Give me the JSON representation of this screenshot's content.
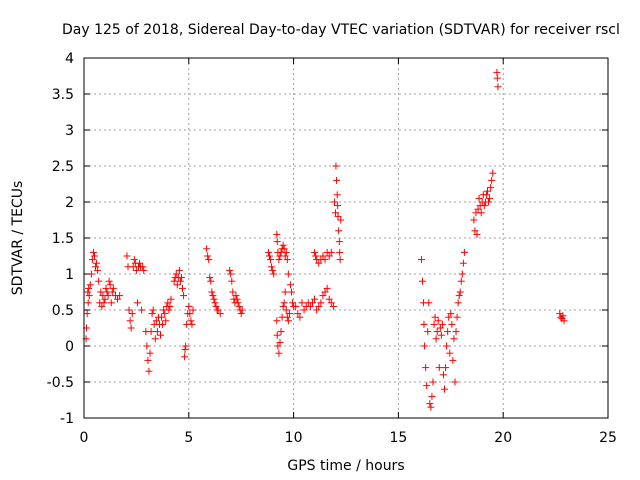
{
  "chart_data": {
    "type": "scatter",
    "title": "Day 125 of 2018, Sidereal Day-to-day VTEC variation (SDTVAR) for receiver rscl",
    "xlabel": "GPS time / hours",
    "ylabel": "SDTVAR / TECUs",
    "xlim": [
      0,
      25
    ],
    "ylim": [
      -1,
      4
    ],
    "xticks": [
      0,
      5,
      10,
      15,
      20,
      25
    ],
    "yticks": [
      -1,
      -0.5,
      0,
      0.5,
      1,
      1.5,
      2,
      2.5,
      3,
      3.5,
      4
    ],
    "grid": true,
    "marker": "+",
    "color": "#ff0000",
    "series": [
      {
        "name": "SDTVAR",
        "points": [
          [
            0.1,
            0.1
          ],
          [
            0.12,
            0.25
          ],
          [
            0.15,
            0.45
          ],
          [
            0.18,
            0.75
          ],
          [
            0.2,
            0.6
          ],
          [
            0.22,
            0.8
          ],
          [
            0.25,
            0.7
          ],
          [
            0.3,
            0.85
          ],
          [
            0.35,
            1.0
          ],
          [
            0.4,
            1.2
          ],
          [
            0.45,
            1.3
          ],
          [
            0.5,
            1.25
          ],
          [
            0.55,
            1.1
          ],
          [
            0.6,
            1.15
          ],
          [
            0.65,
            1.05
          ],
          [
            0.7,
            0.9
          ],
          [
            0.75,
            0.6
          ],
          [
            0.8,
            0.75
          ],
          [
            0.85,
            0.55
          ],
          [
            0.9,
            0.7
          ],
          [
            0.95,
            0.6
          ],
          [
            1.0,
            0.65
          ],
          [
            1.05,
            0.8
          ],
          [
            1.1,
            0.75
          ],
          [
            1.15,
            0.7
          ],
          [
            1.2,
            0.9
          ],
          [
            1.25,
            0.85
          ],
          [
            1.3,
            0.6
          ],
          [
            1.35,
            0.75
          ],
          [
            1.4,
            0.8
          ],
          [
            1.5,
            0.7
          ],
          [
            1.6,
            0.65
          ],
          [
            1.7,
            0.7
          ],
          [
            2.05,
            1.25
          ],
          [
            2.1,
            1.1
          ],
          [
            2.15,
            0.5
          ],
          [
            2.2,
            0.35
          ],
          [
            2.25,
            0.25
          ],
          [
            2.3,
            0.45
          ],
          [
            2.35,
            1.1
          ],
          [
            2.4,
            1.2
          ],
          [
            2.45,
            1.15
          ],
          [
            2.5,
            1.05
          ],
          [
            2.55,
            0.6
          ],
          [
            2.6,
            1.1
          ],
          [
            2.65,
            1.15
          ],
          [
            2.7,
            1.1
          ],
          [
            2.75,
            0.5
          ],
          [
            2.8,
            1.1
          ],
          [
            2.85,
            1.05
          ],
          [
            2.95,
            0.2
          ],
          [
            3.0,
            0.0
          ],
          [
            3.05,
            -0.2
          ],
          [
            3.1,
            -0.35
          ],
          [
            3.15,
            -0.1
          ],
          [
            3.2,
            0.2
          ],
          [
            3.25,
            0.45
          ],
          [
            3.3,
            0.5
          ],
          [
            3.35,
            0.3
          ],
          [
            3.4,
            0.1
          ],
          [
            3.45,
            0.35
          ],
          [
            3.5,
            0.2
          ],
          [
            3.55,
            0.4
          ],
          [
            3.6,
            0.3
          ],
          [
            3.65,
            0.15
          ],
          [
            3.7,
            0.4
          ],
          [
            3.75,
            0.3
          ],
          [
            3.8,
            0.5
          ],
          [
            3.85,
            0.45
          ],
          [
            3.9,
            0.35
          ],
          [
            3.95,
            0.55
          ],
          [
            4.0,
            0.6
          ],
          [
            4.05,
            0.5
          ],
          [
            4.1,
            0.55
          ],
          [
            4.15,
            0.65
          ],
          [
            4.3,
            0.9
          ],
          [
            4.35,
            0.95
          ],
          [
            4.4,
            1.0
          ],
          [
            4.45,
            0.85
          ],
          [
            4.5,
            0.95
          ],
          [
            4.55,
            1.05
          ],
          [
            4.6,
            0.9
          ],
          [
            4.65,
            0.95
          ],
          [
            4.7,
            0.8
          ],
          [
            4.75,
            0.7
          ],
          [
            4.8,
            -0.15
          ],
          [
            4.82,
            -0.05
          ],
          [
            4.85,
            0.0
          ],
          [
            4.9,
            0.3
          ],
          [
            4.95,
            0.45
          ],
          [
            5.0,
            0.55
          ],
          [
            5.05,
            0.45
          ],
          [
            5.1,
            0.35
          ],
          [
            5.15,
            0.3
          ],
          [
            5.2,
            0.5
          ],
          [
            5.85,
            1.35
          ],
          [
            5.9,
            1.25
          ],
          [
            5.95,
            1.2
          ],
          [
            6.0,
            0.95
          ],
          [
            6.05,
            0.9
          ],
          [
            6.1,
            0.75
          ],
          [
            6.15,
            0.7
          ],
          [
            6.2,
            0.65
          ],
          [
            6.25,
            0.6
          ],
          [
            6.3,
            0.55
          ],
          [
            6.35,
            0.5
          ],
          [
            6.4,
            0.5
          ],
          [
            6.5,
            0.45
          ],
          [
            6.95,
            1.05
          ],
          [
            7.0,
            1.0
          ],
          [
            7.05,
            0.9
          ],
          [
            7.1,
            0.75
          ],
          [
            7.15,
            0.65
          ],
          [
            7.2,
            0.6
          ],
          [
            7.25,
            0.7
          ],
          [
            7.3,
            0.65
          ],
          [
            7.35,
            0.6
          ],
          [
            7.4,
            0.55
          ],
          [
            7.45,
            0.5
          ],
          [
            7.5,
            0.45
          ],
          [
            7.55,
            0.5
          ],
          [
            8.8,
            1.3
          ],
          [
            8.85,
            1.25
          ],
          [
            8.9,
            1.2
          ],
          [
            8.95,
            1.1
          ],
          [
            9.0,
            1.05
          ],
          [
            9.05,
            1.0
          ],
          [
            9.2,
            1.55
          ],
          [
            9.22,
            1.45
          ],
          [
            9.25,
            1.3
          ],
          [
            9.3,
            1.2
          ],
          [
            9.35,
            1.25
          ],
          [
            9.4,
            1.3
          ],
          [
            9.45,
            1.35
          ],
          [
            9.5,
            1.4
          ],
          [
            9.55,
            1.35
          ],
          [
            9.6,
            1.25
          ],
          [
            9.65,
            1.3
          ],
          [
            9.7,
            1.2
          ],
          [
            9.75,
            1.0
          ],
          [
            9.2,
            0.35
          ],
          [
            9.22,
            0.15
          ],
          [
            9.25,
            0.0
          ],
          [
            9.3,
            -0.1
          ],
          [
            9.35,
            0.05
          ],
          [
            9.4,
            0.2
          ],
          [
            9.45,
            0.4
          ],
          [
            9.5,
            0.55
          ],
          [
            9.55,
            0.6
          ],
          [
            9.6,
            0.75
          ],
          [
            9.65,
            0.5
          ],
          [
            9.7,
            0.4
          ],
          [
            9.75,
            0.35
          ],
          [
            9.8,
            0.45
          ],
          [
            9.85,
            0.85
          ],
          [
            9.9,
            0.75
          ],
          [
            9.95,
            0.6
          ],
          [
            10.0,
            0.55
          ],
          [
            10.1,
            0.55
          ],
          [
            10.2,
            0.45
          ],
          [
            10.3,
            0.4
          ],
          [
            10.4,
            0.6
          ],
          [
            10.5,
            0.5
          ],
          [
            10.6,
            0.55
          ],
          [
            10.7,
            0.6
          ],
          [
            10.8,
            0.55
          ],
          [
            10.9,
            0.6
          ],
          [
            11.0,
            0.65
          ],
          [
            11.1,
            0.5
          ],
          [
            11.2,
            0.55
          ],
          [
            11.3,
            0.6
          ],
          [
            11.4,
            0.7
          ],
          [
            11.5,
            0.75
          ],
          [
            11.6,
            0.8
          ],
          [
            11.7,
            0.65
          ],
          [
            11.8,
            0.6
          ],
          [
            11.9,
            0.55
          ],
          [
            11.0,
            1.3
          ],
          [
            11.05,
            1.25
          ],
          [
            11.1,
            1.2
          ],
          [
            11.2,
            1.15
          ],
          [
            11.3,
            1.2
          ],
          [
            11.4,
            1.25
          ],
          [
            11.5,
            1.2
          ],
          [
            11.6,
            1.3
          ],
          [
            11.7,
            1.25
          ],
          [
            11.8,
            1.3
          ],
          [
            11.95,
            2.0
          ],
          [
            12.0,
            1.85
          ],
          [
            12.02,
            2.5
          ],
          [
            12.05,
            2.3
          ],
          [
            12.08,
            2.1
          ],
          [
            12.1,
            1.95
          ],
          [
            12.12,
            1.8
          ],
          [
            12.15,
            1.6
          ],
          [
            12.18,
            1.45
          ],
          [
            12.2,
            1.3
          ],
          [
            12.22,
            1.2
          ],
          [
            12.25,
            1.75
          ],
          [
            16.1,
            1.2
          ],
          [
            16.15,
            0.9
          ],
          [
            16.2,
            0.6
          ],
          [
            16.22,
            0.3
          ],
          [
            16.25,
            0.0
          ],
          [
            16.3,
            -0.3
          ],
          [
            16.35,
            -0.55
          ],
          [
            16.4,
            0.2
          ],
          [
            16.45,
            0.6
          ],
          [
            16.5,
            -0.8
          ],
          [
            16.55,
            -0.85
          ],
          [
            16.6,
            -0.7
          ],
          [
            16.65,
            -0.5
          ],
          [
            16.7,
            0.3
          ],
          [
            16.75,
            0.4
          ],
          [
            16.8,
            0.1
          ],
          [
            16.85,
            0.2
          ],
          [
            16.9,
            0.35
          ],
          [
            16.95,
            -0.3
          ],
          [
            17.0,
            0.25
          ],
          [
            17.05,
            0.15
          ],
          [
            17.1,
            0.3
          ],
          [
            17.15,
            -0.4
          ],
          [
            17.2,
            -0.6
          ],
          [
            17.25,
            -0.3
          ],
          [
            17.3,
            0.0
          ],
          [
            17.35,
            0.2
          ],
          [
            17.4,
            0.4
          ],
          [
            17.45,
            -0.1
          ],
          [
            17.5,
            0.45
          ],
          [
            17.55,
            0.3
          ],
          [
            17.6,
            -0.2
          ],
          [
            17.65,
            0.1
          ],
          [
            17.7,
            -0.5
          ],
          [
            17.75,
            0.2
          ],
          [
            17.8,
            0.4
          ],
          [
            17.85,
            0.6
          ],
          [
            17.9,
            0.7
          ],
          [
            17.95,
            0.75
          ],
          [
            18.0,
            0.9
          ],
          [
            18.05,
            1.0
          ],
          [
            18.1,
            1.15
          ],
          [
            18.15,
            1.3
          ],
          [
            18.6,
            1.75
          ],
          [
            18.65,
            1.6
          ],
          [
            18.7,
            1.85
          ],
          [
            18.75,
            1.55
          ],
          [
            18.8,
            1.9
          ],
          [
            18.85,
            2.05
          ],
          [
            18.9,
            1.95
          ],
          [
            18.95,
            1.85
          ],
          [
            19.0,
            2.0
          ],
          [
            19.05,
            2.1
          ],
          [
            19.1,
            1.95
          ],
          [
            19.15,
            2.0
          ],
          [
            19.2,
            2.1
          ],
          [
            19.25,
            2.15
          ],
          [
            19.3,
            2.0
          ],
          [
            19.35,
            2.05
          ],
          [
            19.4,
            2.2
          ],
          [
            19.45,
            2.3
          ],
          [
            19.5,
            2.4
          ],
          [
            19.7,
            3.8
          ],
          [
            19.72,
            3.72
          ],
          [
            19.75,
            3.6
          ],
          [
            22.7,
            0.45
          ],
          [
            22.75,
            0.4
          ],
          [
            22.8,
            0.38
          ],
          [
            22.85,
            0.42
          ],
          [
            22.9,
            0.35
          ]
        ]
      }
    ]
  }
}
